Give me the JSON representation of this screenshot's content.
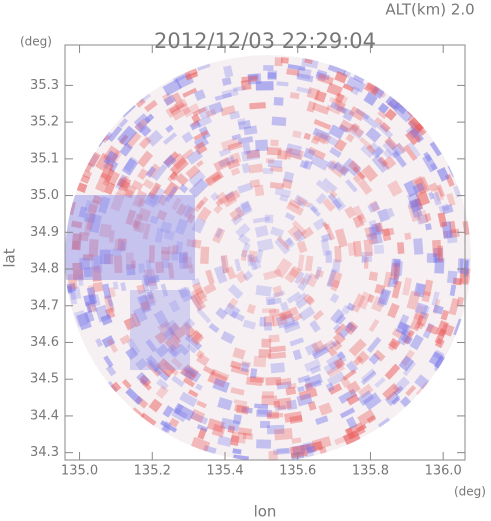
{
  "chart_data": {
    "type": "radar-map",
    "title": "2012/12/03 22:29:04",
    "subtitle": "ALT(km) 2.0",
    "x_unit": "(deg)",
    "y_unit": "(deg)",
    "x_label": "lon",
    "y_label": "lat",
    "xlim": [
      134.96,
      136.06
    ],
    "xticks": [
      {
        "value": 135,
        "label": "135.0"
      },
      135.2,
      135.4,
      135.6,
      135.8,
      {
        "value": 136,
        "label": "136.0"
      }
    ],
    "ylim": [
      34.28,
      35.41
    ],
    "yticks": [
      34.3,
      34.4,
      34.5,
      34.6,
      34.7,
      34.8,
      34.9,
      {
        "value": 35,
        "label": "35.0"
      },
      35.1,
      35.2,
      35.3
    ]
  }
}
